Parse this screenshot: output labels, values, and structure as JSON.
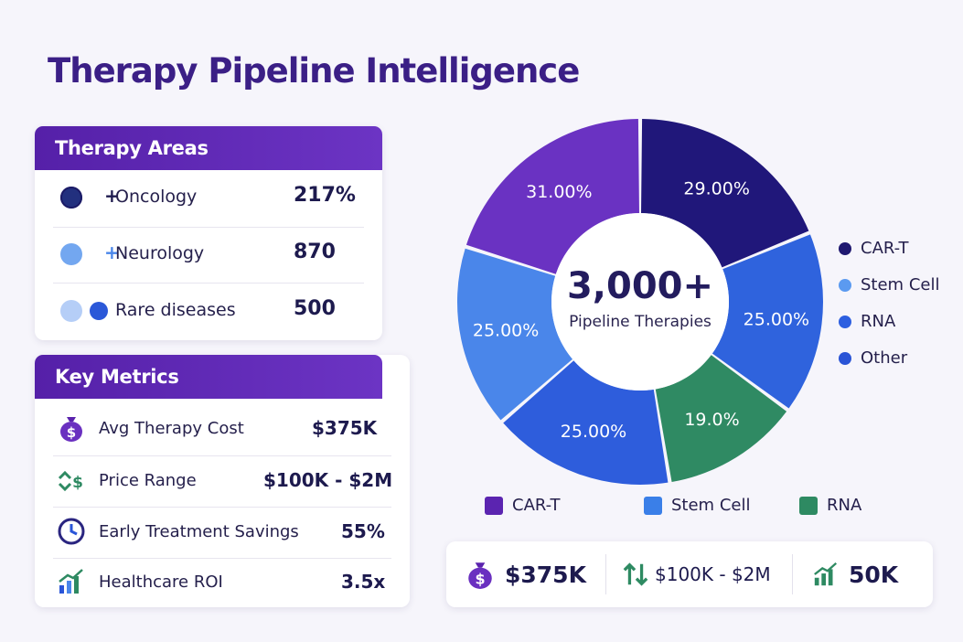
{
  "title": "Therapy Pipeline Intelligence",
  "therapy_areas": {
    "header": "Therapy Areas",
    "rows": [
      {
        "label": "Oncology",
        "value": "217%",
        "prefix": "+"
      },
      {
        "label": "Neurology",
        "value": "870",
        "prefix": "+"
      },
      {
        "label": "Rare diseases",
        "value": "500",
        "prefix": ""
      }
    ]
  },
  "key_metrics": {
    "header": "Key Metrics",
    "rows": [
      {
        "label": "Avg Therapy Cost",
        "value": "$375K",
        "icon": "money-bag-icon"
      },
      {
        "label": "Price Range",
        "value": "$100K - $2M",
        "icon": "exchange-arrows-icon"
      },
      {
        "label": "Early Treatment Savings",
        "value": "55%",
        "icon": "clock-icon"
      },
      {
        "label": "Healthcare ROI",
        "value": "3.5x",
        "icon": "growth-chart-icon"
      }
    ]
  },
  "chart_data": {
    "type": "pie",
    "center_value": "3,000+",
    "center_label": "Pipeline Therapies",
    "slices": [
      {
        "label": "29.00%",
        "value": 29.0,
        "color": "#20177a"
      },
      {
        "label": "25.00%",
        "value": 25.0,
        "color": "#2f63dd"
      },
      {
        "label": "19.0%",
        "value": 19.0,
        "color": "#2f8a63"
      },
      {
        "label": "25.00%",
        "value": 25.0,
        "color": "#2e5ddc"
      },
      {
        "label": "25.00%",
        "value": 25.0,
        "color": "#4a86ea"
      },
      {
        "label": "31.00%",
        "value": 31.0,
        "color": "#6a32c2"
      }
    ],
    "legend_right": [
      {
        "name": "CAR-T",
        "color": "#1f1870"
      },
      {
        "name": "Stem Cell",
        "color": "#5b9af0"
      },
      {
        "name": "RNA",
        "color": "#2d5fe0"
      },
      {
        "name": "Other",
        "color": "#2a54d6"
      }
    ],
    "legend_bottom": [
      {
        "name": "CAR-T",
        "color": "#5b24b0"
      },
      {
        "name": "Stem Cell",
        "color": "#3a7fe8"
      },
      {
        "name": "RNA",
        "color": "#2e8a62"
      }
    ]
  },
  "summary": [
    {
      "value": "$375K",
      "icon": "money-bag-icon"
    },
    {
      "value": "$100K - $2M",
      "icon": "up-down-arrows-icon"
    },
    {
      "value": "50K",
      "icon": "growth-chart-icon"
    }
  ]
}
